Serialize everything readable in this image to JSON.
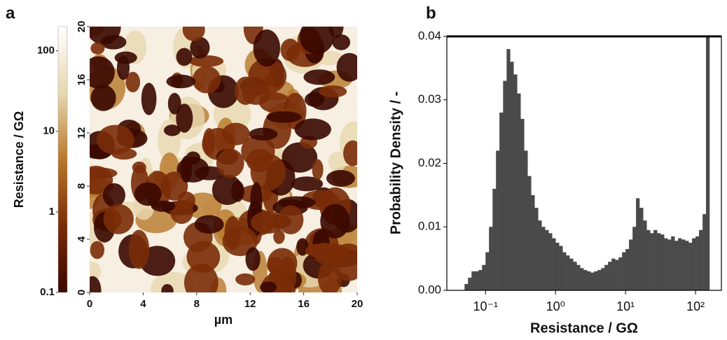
{
  "chart_data": [
    {
      "type": "heatmap",
      "panel": "a",
      "xlabel": "µm",
      "xlim": [
        0,
        20
      ],
      "ylim": [
        0,
        20
      ],
      "xticks": [
        0,
        4,
        8,
        12,
        16,
        20
      ],
      "yticks": [
        0,
        4,
        8,
        12,
        16,
        20
      ],
      "colorbar": {
        "label": "Resistance / GΩ",
        "lim": [
          0.1,
          200
        ],
        "ticks": [
          0.1,
          1,
          10,
          100
        ],
        "log": true,
        "colors": [
          "#3a0800",
          "#7a2c08",
          "#b8782a",
          "#e8d8b0",
          "#ffffff"
        ]
      }
    },
    {
      "type": "histogram",
      "panel": "b",
      "xlabel": "Resistance / GΩ",
      "ylabel": "Probability Density / -",
      "xscale": "log",
      "color": "#4a4a4a",
      "xlim": [
        0.028,
        234
      ],
      "ylim": [
        0,
        0.04
      ],
      "xticks": [
        {
          "value": 0.1,
          "label": "10⁻¹"
        },
        {
          "value": 1,
          "label": "10⁰"
        },
        {
          "value": 10,
          "label": "10¹"
        },
        {
          "value": 100,
          "label": "10²"
        }
      ],
      "yticks": [
        {
          "value": 0,
          "label": "0.00"
        },
        {
          "value": 0.01,
          "label": "0.01"
        },
        {
          "value": 0.02,
          "label": "0.02"
        },
        {
          "value": 0.03,
          "label": "0.03"
        },
        {
          "value": 0.04,
          "label": "0.04"
        }
      ],
      "bins": [
        0.0501,
        0.0562,
        0.0631,
        0.0708,
        0.0794,
        0.0891,
        0.1,
        0.112,
        0.126,
        0.141,
        0.158,
        0.178,
        0.2,
        0.224,
        0.251,
        0.282,
        0.316,
        0.355,
        0.398,
        0.447,
        0.501,
        0.562,
        0.631,
        0.708,
        0.794,
        0.891,
        1,
        1.12,
        1.26,
        1.41,
        1.58,
        1.78,
        2,
        2.24,
        2.51,
        2.82,
        3.16,
        3.55,
        3.98,
        4.47,
        5.01,
        5.62,
        6.31,
        7.08,
        7.94,
        8.91,
        10,
        11.2,
        12.6,
        14.1,
        15.8,
        17.8,
        20,
        22.4,
        25.1,
        28.2,
        31.6,
        35.5,
        39.8,
        44.7,
        50.1,
        56.2,
        63.1,
        70.8,
        79.4,
        89.1,
        100,
        112,
        126,
        141,
        158
      ],
      "values": [
        0.001,
        0.002,
        0.003,
        0.003,
        0.0032,
        0.004,
        0.006,
        0.01,
        0.016,
        0.022,
        0.028,
        0.033,
        0.038,
        0.036,
        0.034,
        0.031,
        0.027,
        0.022,
        0.018,
        0.015,
        0.013,
        0.011,
        0.01,
        0.0095,
        0.009,
        0.0082,
        0.0075,
        0.007,
        0.006,
        0.0055,
        0.005,
        0.0045,
        0.004,
        0.0035,
        0.0032,
        0.003,
        0.0028,
        0.003,
        0.0032,
        0.0035,
        0.004,
        0.0045,
        0.005,
        0.0048,
        0.0052,
        0.006,
        0.0065,
        0.008,
        0.01,
        0.0145,
        0.013,
        0.011,
        0.0095,
        0.009,
        0.0095,
        0.009,
        0.0088,
        0.0082,
        0.008,
        0.0085,
        0.0078,
        0.0082,
        0.008,
        0.0078,
        0.0075,
        0.0082,
        0.0085,
        0.0095,
        0.012,
        0.04
      ]
    }
  ]
}
